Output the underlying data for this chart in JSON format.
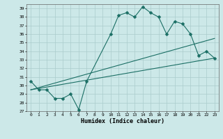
{
  "xlabel": "Humidex (Indice chaleur)",
  "bg_color": "#cce8e8",
  "line_color": "#1a6e64",
  "grid_color": "#aacccc",
  "ylim": [
    27,
    39.5
  ],
  "xlim": [
    -0.5,
    23.5
  ],
  "yticks": [
    27,
    28,
    29,
    30,
    31,
    32,
    33,
    34,
    35,
    36,
    37,
    38,
    39
  ],
  "xticks": [
    0,
    1,
    2,
    3,
    4,
    5,
    6,
    7,
    8,
    9,
    10,
    11,
    12,
    13,
    14,
    15,
    16,
    17,
    18,
    19,
    20,
    21,
    22,
    23
  ],
  "series1_x": [
    0,
    1,
    2,
    3,
    4,
    5,
    6,
    7,
    10,
    11,
    12,
    13,
    14,
    15,
    16,
    17,
    18,
    19,
    20,
    21,
    22,
    23
  ],
  "series1_y": [
    30.5,
    29.5,
    29.5,
    28.5,
    28.5,
    29.0,
    27.2,
    30.5,
    36.0,
    38.2,
    38.5,
    38.0,
    39.2,
    38.5,
    38.0,
    36.0,
    37.5,
    37.2,
    36.0,
    33.5,
    34.0,
    33.2
  ],
  "series2_x": [
    0,
    23
  ],
  "series2_y": [
    29.5,
    33.2
  ],
  "series3_x": [
    0,
    23
  ],
  "series3_y": [
    29.5,
    35.5
  ],
  "marker_size": 2.5,
  "linewidth": 0.8
}
